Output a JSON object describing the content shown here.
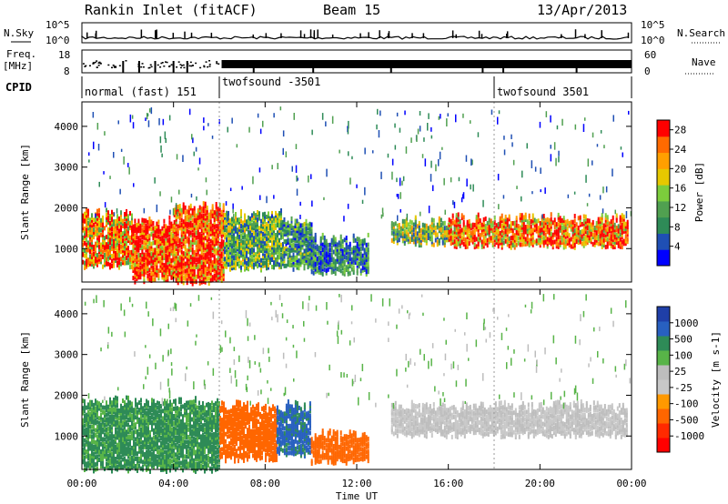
{
  "header": {
    "station": "Rankin Inlet (fitACF)",
    "beam": "Beam 15",
    "date": "13/Apr/2013"
  },
  "top_panels": {
    "nsky_label": "N.Sky",
    "nsky_ticks": [
      "10^5",
      "10^0"
    ],
    "nsearch_label": "N.Search",
    "nsearch_ticks": [
      "10^5",
      "10^0"
    ],
    "freq_label": "Freq.",
    "freq_unit": "[MHz]",
    "freq_ticks": [
      "18",
      "8"
    ],
    "nave_label": "Nave",
    "nave_ticks": [
      "60",
      "0"
    ],
    "cpid_label": "CPID",
    "cpid_segments": [
      {
        "label": "normal (fast) 151",
        "start_hour": 0
      },
      {
        "label": "twofsound -3501",
        "start_hour": 6
      },
      {
        "label": "twofsound 3501",
        "start_hour": 18
      }
    ]
  },
  "colors": {
    "power_scale": [
      "#0000ff",
      "#1f4fb4",
      "#2e8b57",
      "#50a050",
      "#7ccd3c",
      "#e6c800",
      "#ff9f00",
      "#ff6a00",
      "#ff0000"
    ],
    "velocity_scale": [
      "#1f3fa8",
      "#2860c0",
      "#2e8b57",
      "#58b448",
      "#bdbdbd",
      "#c8c8c8",
      "#ff9900",
      "#ff6600",
      "#ff2a00",
      "#ff0000"
    ]
  },
  "chart_data": [
    {
      "type": "heatmap",
      "title": "Power",
      "ylabel": "Slant Range [km]",
      "xlabel": "Time UT",
      "x_ticks": [
        "00:00",
        "04:00",
        "08:00",
        "12:00",
        "16:00",
        "20:00",
        "00:00"
      ],
      "xlim_hours": [
        0,
        24
      ],
      "ylim": [
        180,
        4600
      ],
      "y_ticks": [
        1000,
        2000,
        3000,
        4000
      ],
      "colorbar": {
        "label": "Power [dB]",
        "ticks": [
          4,
          8,
          12,
          16,
          20,
          24,
          28
        ],
        "range": [
          0,
          30
        ]
      },
      "echo_regions": [
        {
          "t_start": 0.0,
          "t_end": 2.2,
          "r_min": 650,
          "r_max": 1900,
          "value": 22
        },
        {
          "t_start": 2.2,
          "t_end": 4.0,
          "r_min": 300,
          "r_max": 1700,
          "value": 27
        },
        {
          "t_start": 4.0,
          "t_end": 6.2,
          "r_min": 250,
          "r_max": 2100,
          "value": 28
        },
        {
          "t_start": 6.2,
          "t_end": 8.8,
          "r_min": 600,
          "r_max": 1900,
          "value": 12
        },
        {
          "t_start": 8.8,
          "t_end": 10.0,
          "r_min": 600,
          "r_max": 1700,
          "value": 10
        },
        {
          "t_start": 10.0,
          "t_end": 12.5,
          "r_min": 500,
          "r_max": 1300,
          "value": 8
        },
        {
          "t_start": 13.5,
          "t_end": 16.0,
          "r_min": 1200,
          "r_max": 1700,
          "value": 14
        },
        {
          "t_start": 16.0,
          "t_end": 23.8,
          "r_min": 1150,
          "r_max": 1800,
          "value": 24
        }
      ]
    },
    {
      "type": "heatmap",
      "title": "Velocity",
      "ylabel": "Slant Range [km]",
      "xlabel": "Time UT",
      "x_ticks": [
        "00:00",
        "04:00",
        "08:00",
        "12:00",
        "16:00",
        "20:00",
        "00:00"
      ],
      "xlim_hours": [
        0,
        24
      ],
      "ylim": [
        180,
        4600
      ],
      "y_ticks": [
        1000,
        2000,
        3000,
        4000
      ],
      "colorbar": {
        "label": "Velocity [m s-1]",
        "ticks": [
          1000,
          500,
          100,
          25,
          -25,
          -100,
          -500,
          -1000
        ]
      },
      "echo_regions": [
        {
          "t_start": 0.0,
          "t_end": 6.0,
          "r_min": 250,
          "r_max": 1900,
          "value": 120
        },
        {
          "t_start": 6.0,
          "t_end": 8.5,
          "r_min": 500,
          "r_max": 1800,
          "value": -150
        },
        {
          "t_start": 8.5,
          "t_end": 10.0,
          "r_min": 600,
          "r_max": 1800,
          "value": 600
        },
        {
          "t_start": 10.0,
          "t_end": 12.5,
          "r_min": 450,
          "r_max": 1100,
          "value": -250
        },
        {
          "t_start": 13.5,
          "t_end": 23.8,
          "r_min": 1100,
          "r_max": 1800,
          "value": 0
        }
      ]
    }
  ]
}
